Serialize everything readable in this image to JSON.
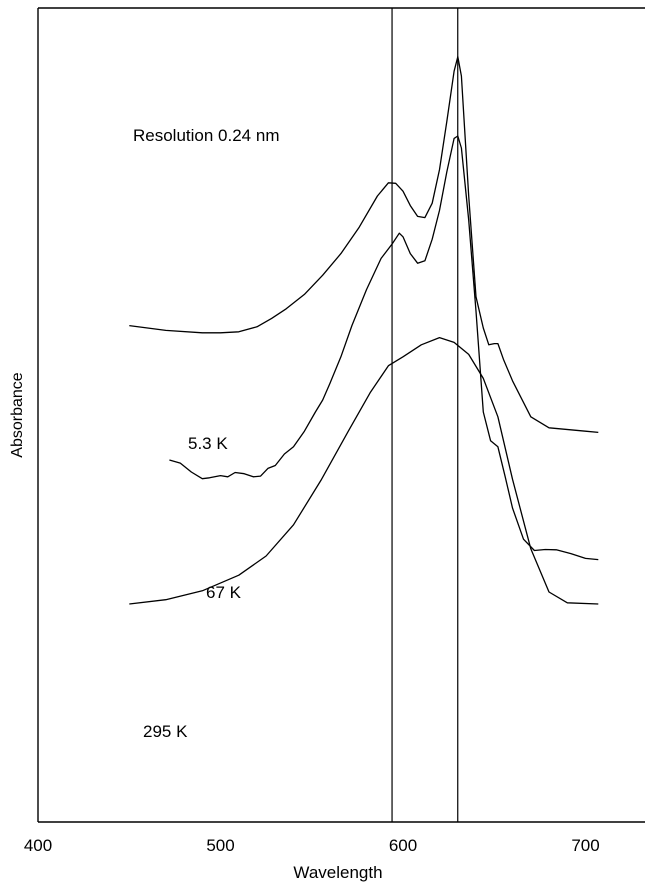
{
  "chart_data": {
    "type": "line",
    "xlabel": "Wavelength",
    "ylabel": "Absorbance",
    "annotation": "Resolution 0.24 nm",
    "xlim": [
      400,
      740
    ],
    "x_ticks": [
      "400",
      "500",
      "600",
      "700"
    ],
    "reference_lines_x": [
      594,
      630
    ],
    "series": [
      {
        "name": "5.3 K",
        "points": [
          [
            450,
            -0.44
          ],
          [
            470,
            -0.46
          ],
          [
            490,
            -0.47
          ],
          [
            500,
            -0.47
          ],
          [
            510,
            -0.466
          ],
          [
            520,
            -0.445
          ],
          [
            528,
            -0.41
          ],
          [
            536,
            -0.37
          ],
          [
            546,
            -0.31
          ],
          [
            556,
            -0.23
          ],
          [
            566,
            -0.14
          ],
          [
            576,
            -0.03
          ],
          [
            586,
            0.1
          ],
          [
            592,
            0.155
          ],
          [
            596,
            0.153
          ],
          [
            600,
            0.12
          ],
          [
            604,
            0.06
          ],
          [
            608,
            0.015
          ],
          [
            612,
            0.01
          ],
          [
            616,
            0.07
          ],
          [
            620,
            0.21
          ],
          [
            624,
            0.41
          ],
          [
            628,
            0.62
          ],
          [
            630,
            0.68
          ],
          [
            632,
            0.6
          ],
          [
            636,
            0.1
          ],
          [
            640,
            -0.32
          ],
          [
            644,
            -0.45
          ],
          [
            647,
            -0.52
          ],
          [
            650,
            -0.515
          ],
          [
            652,
            -0.515
          ],
          [
            655,
            -0.58
          ],
          [
            660,
            -0.67
          ],
          [
            670,
            -0.82
          ],
          [
            680,
            -0.866
          ],
          [
            700,
            -0.88
          ],
          [
            707,
            -0.885
          ]
        ]
      },
      {
        "name": "67 K",
        "points": [
          [
            472,
            -1.0
          ],
          [
            478,
            -1.013
          ],
          [
            484,
            -1.05
          ],
          [
            490,
            -1.078
          ],
          [
            494,
            -1.074
          ],
          [
            500,
            -1.065
          ],
          [
            504,
            -1.07
          ],
          [
            508,
            -1.052
          ],
          [
            513,
            -1.057
          ],
          [
            518,
            -1.07
          ],
          [
            522,
            -1.067
          ],
          [
            526,
            -1.035
          ],
          [
            530,
            -1.023
          ],
          [
            535,
            -0.975
          ],
          [
            540,
            -0.945
          ],
          [
            546,
            -0.88
          ],
          [
            552,
            -0.8
          ],
          [
            556,
            -0.75
          ],
          [
            560,
            -0.68
          ],
          [
            566,
            -0.57
          ],
          [
            572,
            -0.44
          ],
          [
            580,
            -0.29
          ],
          [
            588,
            -0.16
          ],
          [
            594,
            -0.1
          ],
          [
            598,
            -0.055
          ],
          [
            600,
            -0.07
          ],
          [
            604,
            -0.14
          ],
          [
            608,
            -0.18
          ],
          [
            612,
            -0.17
          ],
          [
            616,
            -0.08
          ],
          [
            620,
            0.04
          ],
          [
            624,
            0.2
          ],
          [
            628,
            0.34
          ],
          [
            630,
            0.35
          ],
          [
            632,
            0.3
          ],
          [
            636,
            0.0
          ],
          [
            640,
            -0.38
          ],
          [
            644,
            -0.8
          ],
          [
            648,
            -0.92
          ],
          [
            652,
            -0.945
          ],
          [
            656,
            -1.07
          ],
          [
            660,
            -1.2
          ],
          [
            666,
            -1.33
          ],
          [
            672,
            -1.377
          ],
          [
            678,
            -1.373
          ],
          [
            684,
            -1.374
          ],
          [
            692,
            -1.39
          ],
          [
            700,
            -1.41
          ],
          [
            707,
            -1.415
          ]
        ]
      },
      {
        "name": "295 K",
        "points": [
          [
            450,
            -1.6
          ],
          [
            470,
            -1.582
          ],
          [
            490,
            -1.545
          ],
          [
            510,
            -1.48
          ],
          [
            525,
            -1.4
          ],
          [
            540,
            -1.27
          ],
          [
            555,
            -1.085
          ],
          [
            570,
            -0.88
          ],
          [
            582,
            -0.72
          ],
          [
            592,
            -0.607
          ],
          [
            600,
            -0.57
          ],
          [
            610,
            -0.52
          ],
          [
            620,
            -0.49
          ],
          [
            628,
            -0.51
          ],
          [
            636,
            -0.56
          ],
          [
            644,
            -0.66
          ],
          [
            652,
            -0.82
          ],
          [
            660,
            -1.08
          ],
          [
            670,
            -1.37
          ],
          [
            680,
            -1.55
          ],
          [
            690,
            -1.595
          ],
          [
            707,
            -1.6
          ]
        ]
      }
    ]
  }
}
